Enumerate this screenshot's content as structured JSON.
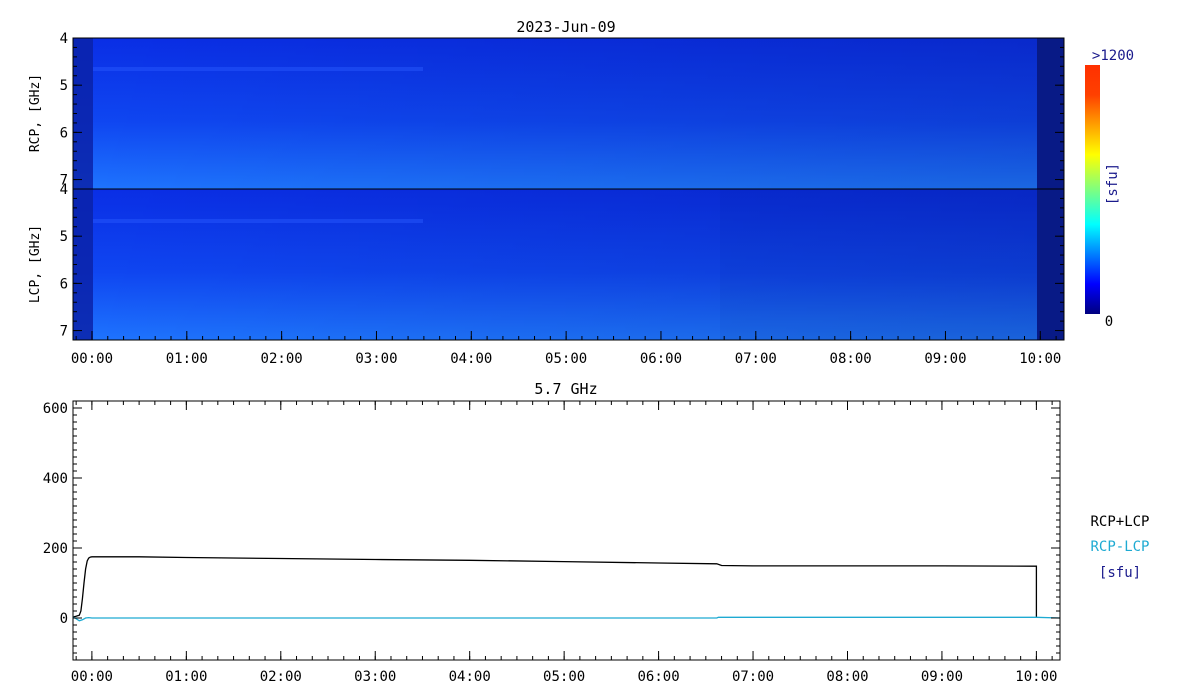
{
  "chart_data": [
    {
      "type": "heatmap",
      "title": "2023-Jun-09",
      "x_unit": "UT",
      "x_range": [
        "23:48",
        "10:15"
      ],
      "x_ticks": [
        "00:00",
        "01:00",
        "02:00",
        "03:00",
        "04:00",
        "05:00",
        "06:00",
        "07:00",
        "08:00",
        "09:00",
        "10:00"
      ],
      "panels": [
        {
          "ylabel": "RCP, [GHz]",
          "ylim": [
            4,
            7.2
          ],
          "y_ticks": [
            "4",
            "5",
            "6",
            "7"
          ],
          "inverted": true
        },
        {
          "ylabel": "LCP, [GHz]",
          "ylim": [
            4,
            7.2
          ],
          "y_ticks": [
            "4",
            "5",
            "6",
            "7"
          ],
          "inverted": true
        }
      ],
      "colorbar": {
        "label": "[sfu]",
        "max_label": ">1200",
        "min_label": "0",
        "range": [
          0,
          1200
        ],
        "colormap": "jet"
      }
    },
    {
      "type": "line",
      "title": "5.7 GHz",
      "ylim": [
        -120,
        620
      ],
      "y_ticks": [
        "0",
        "200",
        "400",
        "600"
      ],
      "x_ticks": [
        "00:00",
        "01:00",
        "02:00",
        "03:00",
        "04:00",
        "05:00",
        "06:00",
        "07:00",
        "08:00",
        "09:00",
        "10:00"
      ],
      "legend": [
        "RCP+LCP",
        "RCP-LCP",
        "[sfu]"
      ],
      "legend_colors": [
        "#000000",
        "#1eaad2",
        "#1a1a8c"
      ],
      "legend_position": "right",
      "series": [
        {
          "name": "RCP+LCP",
          "color": "#000000",
          "x": [
            "23:48",
            "23:50",
            "23:52",
            "23:53",
            "23:54",
            "23:55",
            "23:56",
            "23:57",
            "23:58",
            "23:59",
            "00:00",
            "00:30",
            "01:00",
            "02:00",
            "03:00",
            "04:00",
            "05:00",
            "06:00",
            "06:37",
            "06:40",
            "07:00",
            "08:00",
            "09:00",
            "10:00",
            "10:00",
            "10:00"
          ],
          "y": [
            3,
            5,
            8,
            20,
            55,
            100,
            140,
            163,
            171,
            174,
            175,
            175,
            173,
            170,
            167,
            165,
            161,
            157,
            155,
            150,
            149,
            149,
            149,
            148,
            60,
            3
          ]
        },
        {
          "name": "RCP-LCP",
          "color": "#1eaad2",
          "x": [
            "23:48",
            "23:50",
            "23:52",
            "23:54",
            "23:56",
            "23:58",
            "00:00",
            "03:00",
            "06:37",
            "06:38",
            "10:00",
            "10:15"
          ],
          "y": [
            3,
            -2,
            -8,
            -5,
            0,
            1,
            0,
            0,
            0,
            2,
            2,
            0
          ]
        }
      ]
    }
  ]
}
